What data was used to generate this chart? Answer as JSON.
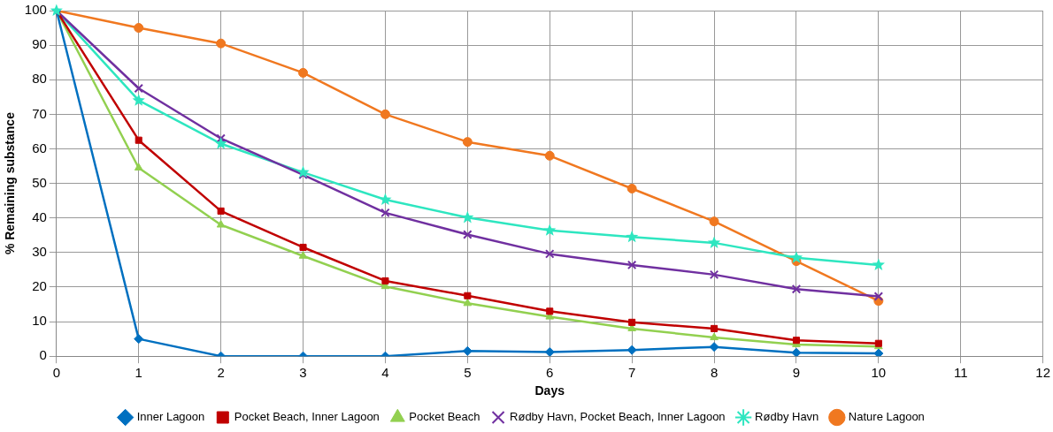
{
  "chart_data": {
    "type": "line",
    "xlabel": "Days",
    "ylabel": "% Remaining substance",
    "x": [
      0,
      1,
      2,
      3,
      4,
      5,
      6,
      7,
      8,
      9,
      10
    ],
    "xlim": [
      0,
      12
    ],
    "xticks": [
      0,
      1,
      2,
      3,
      4,
      5,
      6,
      7,
      8,
      9,
      10,
      11,
      12
    ],
    "ylim": [
      0,
      100
    ],
    "yticks": [
      0,
      10,
      20,
      30,
      40,
      50,
      60,
      70,
      80,
      90,
      100
    ],
    "grid": true,
    "legend": "bottom",
    "line_style": "solid",
    "series": [
      {
        "name": "Inner Lagoon",
        "color": "#0070c0",
        "marker": "diamond",
        "values": [
          100,
          5,
          0,
          0,
          0,
          1.5,
          1.2,
          1.8,
          2.7,
          1,
          0.8
        ]
      },
      {
        "name": "Pocket Beach, Inner Lagoon",
        "color": "#c00000",
        "marker": "square",
        "values": [
          100,
          62.5,
          42,
          31.5,
          21.8,
          17.5,
          13,
          9.8,
          8,
          4.6,
          3.7
        ]
      },
      {
        "name": "Pocket Beach",
        "color": "#92d050",
        "marker": "triangle",
        "values": [
          100,
          54.5,
          38,
          29,
          20.2,
          15.3,
          11.4,
          8,
          5.4,
          3.4,
          2.8
        ]
      },
      {
        "name": "Rødby Havn, Pocket Beach, Inner Lagoon",
        "color": "#7030a0",
        "marker": "cross",
        "values": [
          100,
          77.5,
          63,
          52.5,
          41.5,
          35.2,
          29.6,
          26.4,
          23.6,
          19.4,
          17.3
        ]
      },
      {
        "name": "Rødby Havn",
        "color": "#2ee6c0",
        "marker": "star",
        "values": [
          100,
          74,
          61.5,
          53.2,
          45.3,
          40.1,
          36.4,
          34.5,
          32.8,
          28.5,
          26.4
        ]
      },
      {
        "name": "Nature Lagoon",
        "color": "#f07820",
        "marker": "circle",
        "values": [
          100,
          95,
          90.5,
          82,
          70,
          62,
          58,
          48.5,
          39,
          27.5,
          16
        ]
      }
    ]
  }
}
